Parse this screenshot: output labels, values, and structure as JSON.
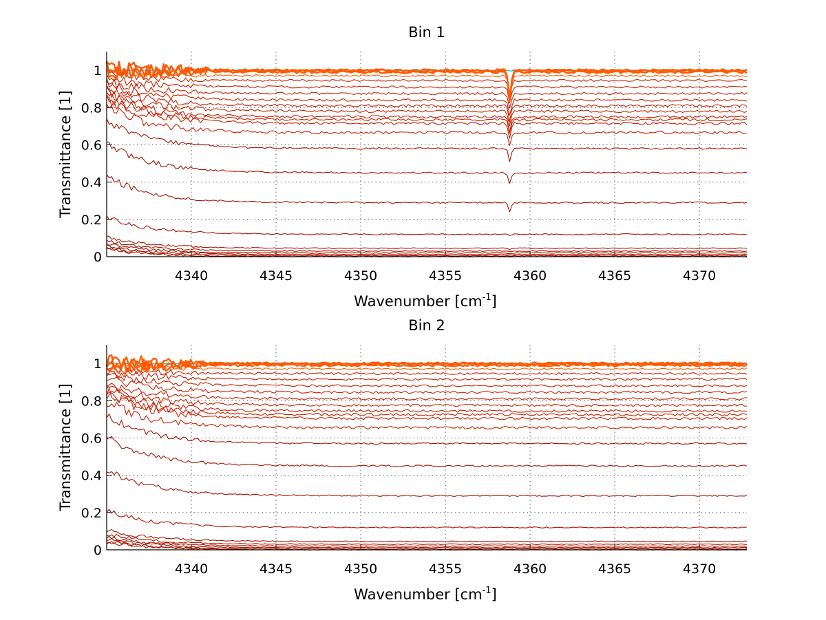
{
  "colors": {
    "trace_dark": "#a81400",
    "trace_mid": "#cc2000",
    "trace_top": "#ff5a00",
    "trace_accent_cyan": "#20b0c0",
    "grid": "#555555",
    "axis": "#000000"
  },
  "chart_data": [
    {
      "type": "line",
      "title": "Bin 1",
      "xlabel": "Wavenumber [cm",
      "xlabel_sup": "-1",
      "xlabel_end": "]",
      "ylabel": "Transmittance [1]",
      "xlim": [
        4335.0,
        4372.8
      ],
      "ylim": [
        0,
        1.1
      ],
      "xticks": [
        4340,
        4345,
        4350,
        4355,
        4360,
        4365,
        4370
      ],
      "yticks": [
        0,
        0.2,
        0.4,
        0.6,
        0.8,
        1
      ],
      "grid": true,
      "legend": "none",
      "absorption_line_x": 4358.8,
      "series_levels": [
        0.0,
        0.005,
        0.012,
        0.02,
        0.03,
        0.045,
        0.12,
        0.29,
        0.45,
        0.58,
        0.665,
        0.715,
        0.735,
        0.75,
        0.78,
        0.81,
        0.84,
        0.875,
        0.91,
        0.945,
        0.97,
        0.99,
        0.997,
        1.0
      ]
    },
    {
      "type": "line",
      "title": "Bin 2",
      "xlabel": "Wavenumber [cm",
      "xlabel_sup": "-1",
      "xlabel_end": "]",
      "ylabel": "Transmittance [1]",
      "xlim": [
        4335.0,
        4372.8
      ],
      "ylim": [
        0,
        1.1
      ],
      "xticks": [
        4340,
        4345,
        4350,
        4355,
        4360,
        4365,
        4370
      ],
      "yticks": [
        0,
        0.2,
        0.4,
        0.6,
        0.8,
        1
      ],
      "grid": true,
      "legend": "none",
      "absorption_line_x": null,
      "series_levels": [
        0.0,
        0.005,
        0.012,
        0.02,
        0.03,
        0.045,
        0.12,
        0.29,
        0.45,
        0.57,
        0.655,
        0.705,
        0.725,
        0.745,
        0.775,
        0.81,
        0.845,
        0.88,
        0.915,
        0.945,
        0.97,
        0.99,
        0.997,
        1.0
      ]
    }
  ]
}
